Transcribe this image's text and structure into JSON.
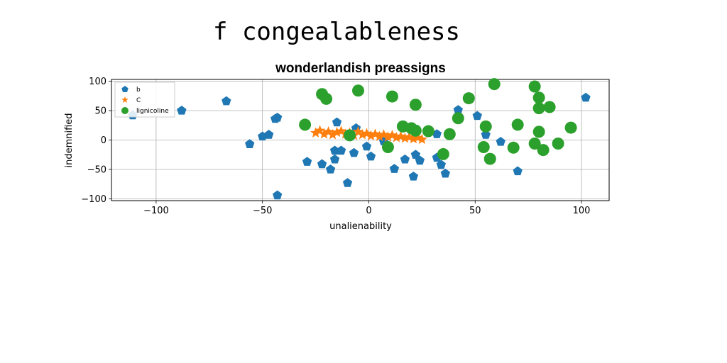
{
  "figure": {
    "suptitle": "f congealableness"
  },
  "chart_data": {
    "type": "scatter",
    "title": "wonderlandish preassigns",
    "xlabel": "unalienability",
    "ylabel": "indemnified",
    "xlim": [
      -121,
      113
    ],
    "ylim": [
      -103,
      103
    ],
    "xticks": [
      -100,
      -50,
      0,
      50,
      100
    ],
    "xtick_labels": [
      "−100",
      "−50",
      "0",
      "50",
      "100"
    ],
    "yticks": [
      -100,
      -50,
      0,
      50,
      100
    ],
    "ytick_labels": [
      "−100",
      "−50",
      "0",
      "50",
      "100"
    ],
    "grid": true,
    "legend_position": "upper-left",
    "series": [
      {
        "name": "b",
        "marker": "pentagon",
        "color": "#1f77b4",
        "points": [
          [
            -111,
            42
          ],
          [
            -88,
            50
          ],
          [
            -67,
            66
          ],
          [
            -56,
            -7
          ],
          [
            -50,
            6
          ],
          [
            -47,
            9
          ],
          [
            -44,
            36
          ],
          [
            -43,
            38
          ],
          [
            -43,
            -94
          ],
          [
            -29,
            -37
          ],
          [
            -22,
            -41
          ],
          [
            -18,
            -50
          ],
          [
            -16,
            -18
          ],
          [
            -16,
            -33
          ],
          [
            -15,
            30
          ],
          [
            -13,
            -18
          ],
          [
            -10,
            -73
          ],
          [
            -7,
            -22
          ],
          [
            -6,
            20
          ],
          [
            -1,
            -11
          ],
          [
            1,
            -28
          ],
          [
            7,
            -2
          ],
          [
            12,
            -49
          ],
          [
            17,
            -33
          ],
          [
            21,
            -62
          ],
          [
            22,
            -25
          ],
          [
            24,
            -35
          ],
          [
            32,
            10
          ],
          [
            32,
            -30
          ],
          [
            34,
            -42
          ],
          [
            36,
            -57
          ],
          [
            42,
            51
          ],
          [
            51,
            41
          ],
          [
            55,
            9
          ],
          [
            62,
            -3
          ],
          [
            70,
            -53
          ],
          [
            102,
            72
          ]
        ]
      },
      {
        "name": "C",
        "marker": "star",
        "color": "#ff7f0e",
        "points": [
          [
            -25,
            12
          ],
          [
            -23,
            16
          ],
          [
            -21,
            10
          ],
          [
            -19,
            14
          ],
          [
            -17,
            9
          ],
          [
            -15,
            13
          ],
          [
            -13,
            15
          ],
          [
            -11,
            10
          ],
          [
            -9,
            12
          ],
          [
            -7,
            8
          ],
          [
            -5,
            14
          ],
          [
            -3,
            9
          ],
          [
            -1,
            11
          ],
          [
            1,
            7
          ],
          [
            3,
            10
          ],
          [
            5,
            6
          ],
          [
            7,
            9
          ],
          [
            9,
            5
          ],
          [
            11,
            8
          ],
          [
            13,
            4
          ],
          [
            15,
            6
          ],
          [
            17,
            3
          ],
          [
            19,
            5
          ],
          [
            21,
            2
          ],
          [
            23,
            4
          ],
          [
            25,
            1
          ]
        ]
      },
      {
        "name": "lignicoline",
        "marker": "circle",
        "color": "#2ca02c",
        "points": [
          [
            -30,
            26
          ],
          [
            -22,
            78
          ],
          [
            -20,
            70
          ],
          [
            -5,
            84
          ],
          [
            -9,
            8
          ],
          [
            9,
            -12
          ],
          [
            11,
            74
          ],
          [
            16,
            23
          ],
          [
            20,
            20
          ],
          [
            22,
            60
          ],
          [
            22,
            16
          ],
          [
            28,
            15
          ],
          [
            35,
            -24
          ],
          [
            38,
            10
          ],
          [
            42,
            37
          ],
          [
            47,
            71
          ],
          [
            54,
            -12
          ],
          [
            55,
            23
          ],
          [
            57,
            -32
          ],
          [
            59,
            95
          ],
          [
            68,
            -13
          ],
          [
            70,
            26
          ],
          [
            78,
            91
          ],
          [
            78,
            -6
          ],
          [
            80,
            72
          ],
          [
            80,
            54
          ],
          [
            80,
            14
          ],
          [
            82,
            -17
          ],
          [
            85,
            56
          ],
          [
            89,
            -6
          ],
          [
            95,
            21
          ]
        ]
      }
    ]
  }
}
